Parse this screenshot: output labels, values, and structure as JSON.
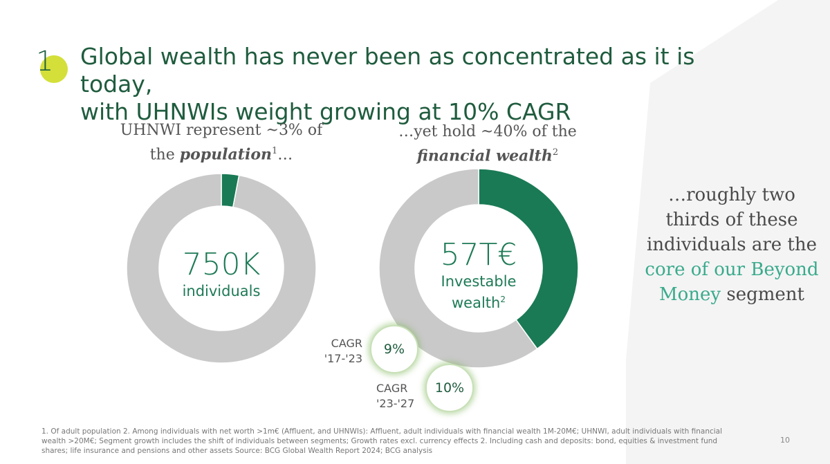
{
  "slide": {
    "section_number": "1",
    "title_line1": "Global wealth has never been as concentrated as it is today,",
    "title_line2": "with UHNWIs weight growing at 10% CAGR",
    "page_number": "10"
  },
  "left_panel": {
    "subhead_line1": "UHNWI represent ~3% of",
    "subhead_prefix": "the ",
    "subhead_emph": "population",
    "subhead_sup": "1",
    "subhead_suffix": "…",
    "center_value": "750K",
    "center_label": "individuals"
  },
  "right_panel": {
    "subhead_line1": "…yet hold ~40% of the",
    "subhead_emph": "financial wealth",
    "subhead_sup": "2",
    "center_value": "57T€",
    "center_label_line1": "Investable",
    "center_label_line2": "wealth",
    "center_label_sup": "2"
  },
  "cagr": [
    {
      "label_line1": "CAGR",
      "label_line2": "'17-'23",
      "value": "9%"
    },
    {
      "label_line1": "CAGR",
      "label_line2": "'23-'27",
      "value": "10%"
    }
  ],
  "side_text": {
    "part1": "…roughly two thirds of these individuals are the ",
    "highlight": "core of our Beyond Money",
    "part2": " segment"
  },
  "footnote": "1. Of adult population 2. Among individuals with net worth >1m€ (Affluent, and UHNWIs): Affluent, adult individuals with financial wealth 1M-20M€; UHNWI, adult individuals with financial wealth >20M€; Segment growth includes the shift of individuals between segments; Growth rates excl. currency effects 2. Including cash and deposits: bond, equities & investment fund shares; life insurance and pensions and other assets Source: BCG Global Wealth Report 2024; BCG analysis",
  "colors": {
    "highlight_green": "#1a7a55",
    "remainder_gray": "#c9c9c9",
    "accent_lime": "#d4df3a",
    "text_green": "#3aaa8c"
  },
  "chart_data": [
    {
      "type": "pie",
      "categories": [
        "UHNWI",
        "Other"
      ],
      "values": [
        3,
        97
      ]
    },
    {
      "type": "pie",
      "categories": [
        "UHNWI",
        "Other"
      ],
      "values": [
        40,
        60
      ]
    }
  ]
}
